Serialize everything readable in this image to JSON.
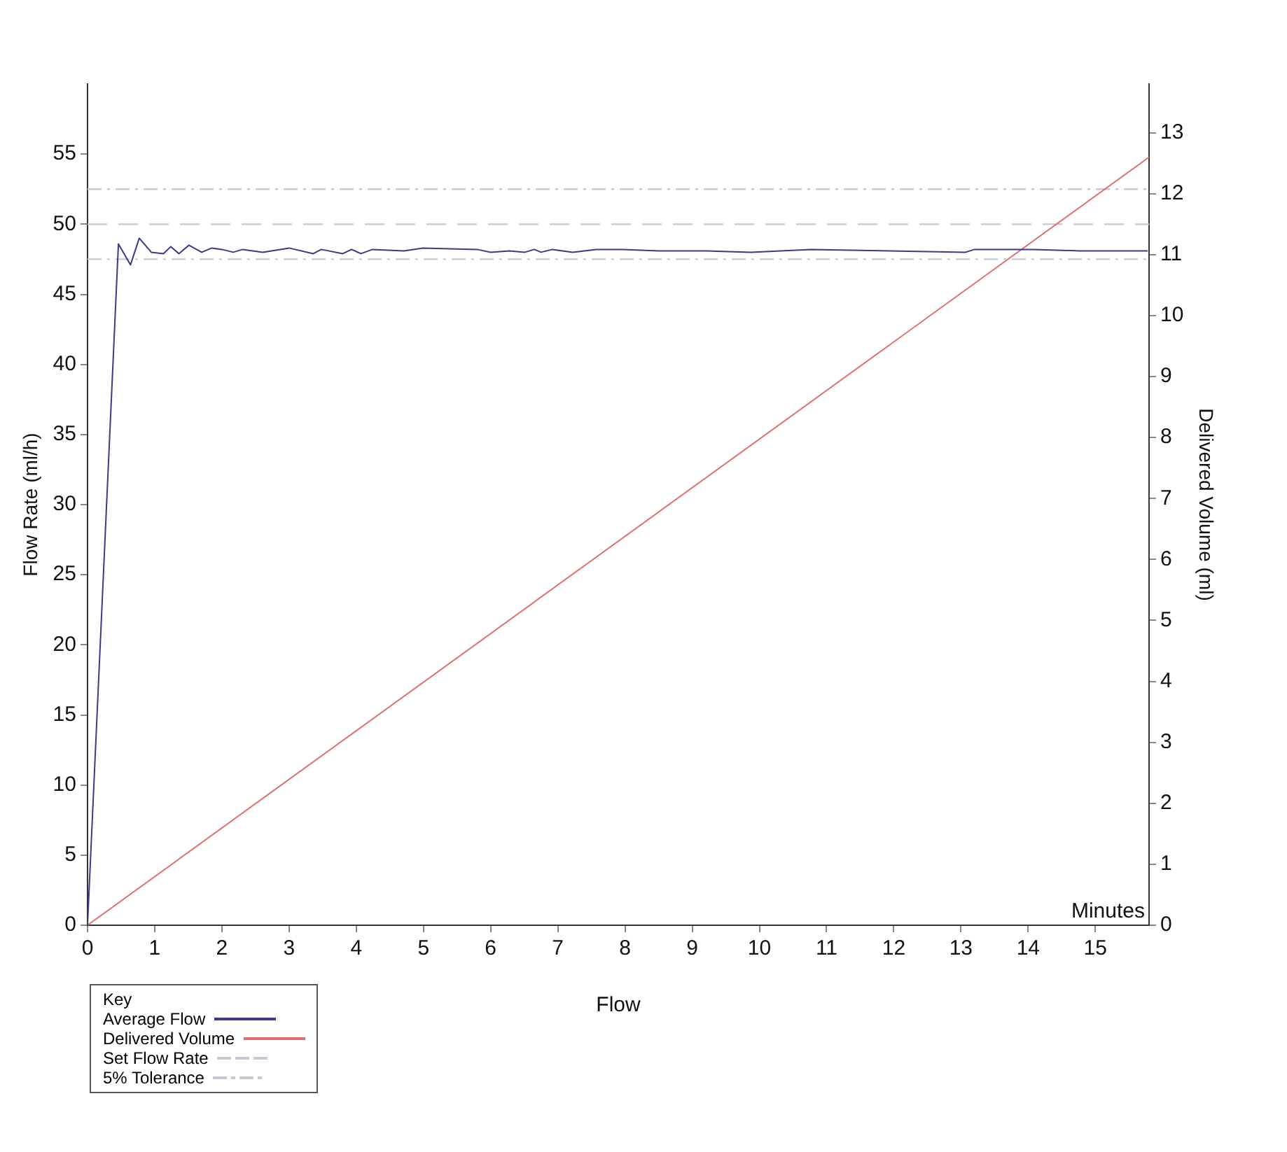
{
  "chart_data": {
    "type": "line",
    "xlabel": "Minutes",
    "ylabel": "Flow Rate (ml/h)",
    "y2label": "Delivered Volume (ml)",
    "legend_title": "Key",
    "annotations": [
      "Flow"
    ],
    "xlim": [
      0,
      15.8
    ],
    "xticks": [
      0,
      1,
      2,
      3,
      4,
      5,
      6,
      7,
      8,
      9,
      10,
      11,
      12,
      13,
      14,
      15
    ],
    "ylim": [
      0,
      60
    ],
    "yticks": [
      0,
      5,
      10,
      15,
      20,
      25,
      30,
      35,
      40,
      45,
      50,
      55
    ],
    "y2lim": [
      0,
      13.8
    ],
    "y2ticks": [
      0,
      1,
      2,
      3,
      4,
      5,
      6,
      7,
      8,
      9,
      10,
      11,
      12,
      13
    ],
    "grid": false,
    "legend": "bottom left",
    "marker": "none",
    "line_style": "solid",
    "series": [
      {
        "name": "Average Flow",
        "color": "#3a3a8c",
        "x": [
          0,
          0.46,
          0.64,
          0.77,
          0.95,
          1.13,
          1.24,
          1.36,
          1.51,
          1.7,
          1.85,
          2.0,
          2.17,
          2.31,
          2.61,
          3.0,
          3.36,
          3.48,
          3.8,
          3.93,
          4.07,
          4.24,
          4.71,
          4.99,
          5.8,
          6.0,
          6.28,
          6.51,
          6.65,
          6.75,
          6.92,
          7.22,
          7.57,
          7.97,
          8.5,
          9.2,
          9.87,
          10.77,
          13.07,
          13.2,
          14.08,
          14.76,
          15.78
        ],
        "values": [
          0,
          48.6,
          47.1,
          49.0,
          48.0,
          47.9,
          48.4,
          47.9,
          48.5,
          48.0,
          48.3,
          48.2,
          48.0,
          48.2,
          48.0,
          48.3,
          47.9,
          48.2,
          47.9,
          48.2,
          47.9,
          48.2,
          48.1,
          48.3,
          48.2,
          48.0,
          48.1,
          48.0,
          48.2,
          48.0,
          48.2,
          48.0,
          48.2,
          48.2,
          48.1,
          48.1,
          48.0,
          48.2,
          48.0,
          48.2,
          48.2,
          48.1,
          48.1
        ]
      },
      {
        "name": "Delivered Volume",
        "color": "#e07070",
        "axis": "y2",
        "x": [
          0,
          15.8
        ],
        "values": [
          0,
          12.6
        ]
      }
    ],
    "ref_lines": [
      {
        "axis": "y",
        "value": 50,
        "label": "Set Flow Rate",
        "color": "#c8c8d4",
        "line_style": "dashed"
      },
      {
        "axis": "y",
        "value": 52.5,
        "label": "5% Tolerance",
        "color": "#c8c8d4",
        "line_style": "dashdot"
      },
      {
        "axis": "y",
        "value": 47.5,
        "color": "#c8c8d4",
        "line_style": "dashdot"
      }
    ]
  }
}
